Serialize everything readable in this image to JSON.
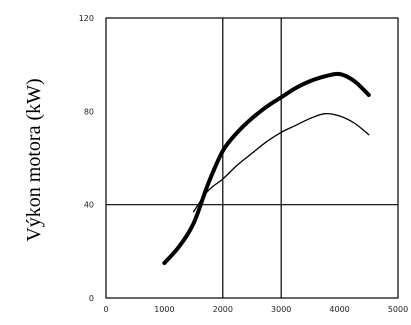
{
  "chart_data": {
    "type": "line",
    "title": "",
    "xlabel": "",
    "ylabel": "Výkon motora (kW)",
    "xlim": [
      0,
      5000
    ],
    "ylim": [
      0,
      120
    ],
    "x_ticks": [
      "0",
      "1000",
      "2000",
      "3000",
      "4000",
      "5000"
    ],
    "y_ticks": [
      "0",
      "40",
      "80",
      "120"
    ],
    "grid": {
      "x": [
        2000,
        3000
      ],
      "y": [
        40
      ]
    },
    "series": [
      {
        "color": "#000000",
        "style": "thick",
        "x": [
          1000,
          1250,
          1500,
          1750,
          2000,
          2250,
          2500,
          2750,
          3000,
          3250,
          3500,
          3750,
          4000,
          4250,
          4500
        ],
        "y": [
          15,
          22,
          32,
          49,
          63,
          71,
          77,
          82,
          86,
          90,
          93,
          95,
          96,
          93,
          87
        ]
      },
      {
        "color": "#000000",
        "style": "thin",
        "x": [
          1500,
          1750,
          2000,
          2250,
          2500,
          2750,
          3000,
          3250,
          3500,
          3750,
          4000,
          4250,
          4500
        ],
        "y": [
          37,
          46,
          51,
          57,
          62,
          67,
          71,
          74,
          77,
          79,
          78,
          75,
          70
        ]
      }
    ]
  }
}
